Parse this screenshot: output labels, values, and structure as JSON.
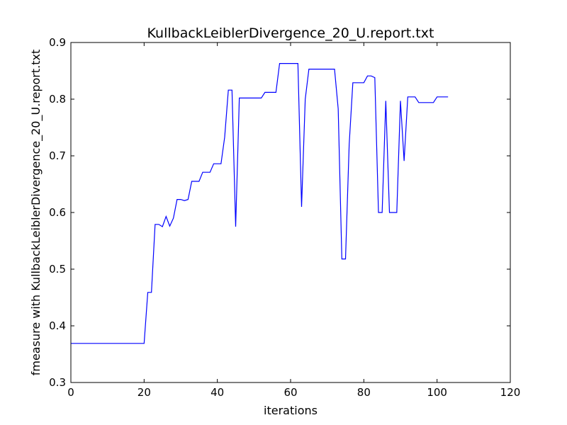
{
  "chart_data": {
    "type": "line",
    "title": "KullbackLeiblerDivergence_20_U.report.txt",
    "xlabel": "iterations",
    "ylabel": "fmeasure with KullbackLeiblerDivergence_20_U.report.txt",
    "xlim": [
      0,
      120
    ],
    "ylim": [
      0.3,
      0.9
    ],
    "xticks": [
      0,
      20,
      40,
      60,
      80,
      100,
      120
    ],
    "yticks": [
      0.3,
      0.4,
      0.5,
      0.6,
      0.7,
      0.8,
      0.9
    ],
    "xtick_labels": [
      "0",
      "20",
      "40",
      "60",
      "80",
      "100",
      "120"
    ],
    "ytick_labels": [
      "0.3",
      "0.4",
      "0.5",
      "0.6",
      "0.7",
      "0.8",
      "0.9"
    ],
    "grid": false,
    "line_color": "#0000ff",
    "series": [
      {
        "x": [
          0,
          1,
          2,
          3,
          4,
          5,
          6,
          7,
          8,
          9,
          10,
          11,
          12,
          13,
          14,
          15,
          16,
          17,
          18,
          19,
          20,
          21,
          22,
          23,
          24,
          25,
          26,
          27,
          28,
          29,
          30,
          31,
          32,
          33,
          34,
          35,
          36,
          37,
          38,
          39,
          40,
          41,
          42,
          43,
          44,
          45,
          46,
          47,
          48,
          49,
          50,
          51,
          52,
          53,
          54,
          55,
          56,
          57,
          58,
          59,
          60,
          61,
          62,
          63,
          64,
          65,
          66,
          67,
          68,
          69,
          70,
          71,
          72,
          73,
          74,
          75,
          76,
          77,
          78,
          79,
          80,
          81,
          82,
          83,
          84,
          85,
          86,
          87,
          88,
          89,
          90,
          91,
          92,
          93,
          94,
          95,
          96,
          97,
          98,
          99,
          100,
          101,
          102,
          103
        ],
        "values": [
          0.369,
          0.369,
          0.369,
          0.369,
          0.369,
          0.369,
          0.369,
          0.369,
          0.369,
          0.369,
          0.369,
          0.369,
          0.369,
          0.369,
          0.369,
          0.369,
          0.369,
          0.369,
          0.369,
          0.369,
          0.369,
          0.459,
          0.459,
          0.579,
          0.579,
          0.575,
          0.593,
          0.576,
          0.59,
          0.623,
          0.623,
          0.621,
          0.623,
          0.655,
          0.655,
          0.655,
          0.671,
          0.671,
          0.671,
          0.686,
          0.686,
          0.686,
          0.733,
          0.816,
          0.816,
          0.575,
          0.802,
          0.802,
          0.802,
          0.802,
          0.802,
          0.802,
          0.802,
          0.812,
          0.812,
          0.812,
          0.812,
          0.863,
          0.863,
          0.863,
          0.863,
          0.863,
          0.863,
          0.61,
          0.8,
          0.853,
          0.853,
          0.853,
          0.853,
          0.853,
          0.853,
          0.853,
          0.853,
          0.783,
          0.518,
          0.518,
          0.72,
          0.829,
          0.829,
          0.829,
          0.829,
          0.841,
          0.841,
          0.838,
          0.6,
          0.6,
          0.797,
          0.6,
          0.6,
          0.6,
          0.797,
          0.691,
          0.804,
          0.804,
          0.804,
          0.794,
          0.794,
          0.794,
          0.794,
          0.794,
          0.804,
          0.804,
          0.804,
          0.804
        ]
      }
    ]
  }
}
